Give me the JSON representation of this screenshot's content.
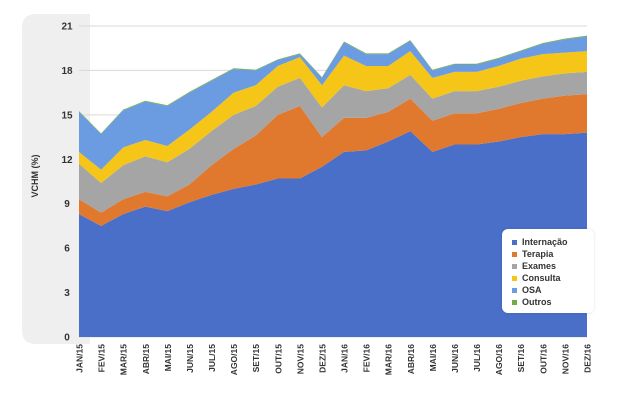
{
  "chart_data": {
    "type": "area",
    "stacked": true,
    "title": "",
    "xlabel": "",
    "ylabel": "VCHM (%)",
    "ylim": [
      0,
      21
    ],
    "yticks": [
      0,
      3,
      6,
      9,
      12,
      15,
      18,
      21
    ],
    "categories": [
      "JAN/15",
      "FEV/15",
      "MAR/15",
      "ABR/15",
      "MAI/15",
      "JUN/15",
      "JUL/15",
      "AGO/15",
      "SET/15",
      "OUT/15",
      "NOV/15",
      "DEZ/15",
      "JAN/16",
      "FEV/16",
      "MAR/16",
      "ABR/16",
      "MAI/16",
      "JUN/16",
      "JUL/16",
      "AGO/16",
      "SET/16",
      "OUT/16",
      "NOV/16",
      "DEZ/16"
    ],
    "series": [
      {
        "name": "Internação",
        "color": "#4a6fc9",
        "values": [
          8.3,
          7.5,
          8.3,
          8.8,
          8.5,
          9.1,
          9.6,
          10.0,
          10.3,
          10.7,
          10.7,
          11.5,
          12.5,
          12.6,
          13.2,
          13.9,
          12.5,
          13.0,
          13.0,
          13.2,
          13.5,
          13.7,
          13.7,
          13.8
        ]
      },
      {
        "name": "Terapia",
        "color": "#e0782e",
        "values": [
          1.0,
          0.9,
          1.0,
          1.0,
          1.0,
          1.2,
          2.0,
          2.7,
          3.3,
          4.3,
          4.9,
          2.0,
          2.3,
          2.2,
          2.0,
          2.2,
          2.1,
          2.1,
          2.1,
          2.2,
          2.3,
          2.4,
          2.6,
          2.6
        ]
      },
      {
        "name": "Exames",
        "color": "#a5a5a5",
        "values": [
          2.4,
          2.0,
          2.3,
          2.4,
          2.3,
          2.4,
          2.3,
          2.3,
          2.0,
          1.9,
          1.9,
          2.0,
          2.2,
          1.8,
          1.6,
          1.6,
          1.5,
          1.5,
          1.5,
          1.5,
          1.5,
          1.5,
          1.5,
          1.5
        ]
      },
      {
        "name": "Consulta",
        "color": "#f5c518",
        "values": [
          0.8,
          0.9,
          1.2,
          1.1,
          1.1,
          1.3,
          1.3,
          1.5,
          1.4,
          1.4,
          1.4,
          1.5,
          2.0,
          1.7,
          1.5,
          1.6,
          1.4,
          1.3,
          1.3,
          1.4,
          1.5,
          1.5,
          1.4,
          1.4
        ]
      },
      {
        "name": "OSA",
        "color": "#6b9be0",
        "values": [
          2.7,
          2.4,
          2.5,
          2.6,
          2.7,
          2.5,
          2.1,
          1.6,
          1.0,
          0.4,
          0.2,
          0.5,
          0.9,
          0.8,
          0.8,
          0.7,
          0.5,
          0.5,
          0.5,
          0.5,
          0.5,
          0.7,
          0.9,
          1.0
        ]
      },
      {
        "name": "Outros",
        "color": "#70ad47",
        "values": [
          0.05,
          0.05,
          0.05,
          0.05,
          0.05,
          0.05,
          0.05,
          0.05,
          0.05,
          0.05,
          0.05,
          0.05,
          0.05,
          0.05,
          0.05,
          0.05,
          0.05,
          0.05,
          0.05,
          0.05,
          0.05,
          0.05,
          0.05,
          0.05
        ]
      }
    ],
    "legend_position": "bottom-right"
  }
}
